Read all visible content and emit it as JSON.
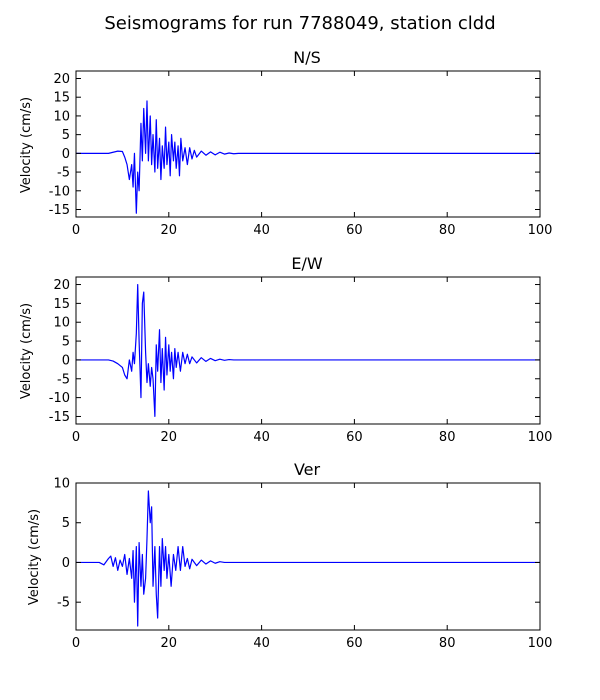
{
  "figure": {
    "title": "Seismograms for run 7788049, station cldd"
  },
  "colors": {
    "trace": "#0000ff",
    "axes": "#000000",
    "background": "#ffffff"
  },
  "chart_data": [
    {
      "type": "line",
      "title": "N/S",
      "xlabel": "",
      "ylabel": "Velocity (cm/s)",
      "xlim": [
        0,
        100
      ],
      "ylim": [
        -17,
        22
      ],
      "xticks": [
        0,
        20,
        40,
        60,
        80,
        100
      ],
      "yticks": [
        -15,
        -10,
        -5,
        0,
        5,
        10,
        15,
        20
      ],
      "grid": false,
      "series": [
        {
          "x": [
            0,
            5,
            7,
            8,
            9,
            10,
            10.5,
            11,
            11.5,
            12,
            12.3,
            12.6,
            13,
            13.3,
            13.6,
            14,
            14.3,
            14.6,
            15,
            15.3,
            15.6,
            16,
            16.3,
            16.6,
            17,
            17.3,
            17.6,
            18,
            18.3,
            18.6,
            19,
            19.3,
            19.6,
            20,
            20.3,
            20.6,
            21,
            21.3,
            21.6,
            22,
            22.3,
            22.6,
            23,
            23.5,
            24,
            24.5,
            25,
            25.5,
            26,
            27,
            28,
            29,
            30,
            31,
            32,
            33,
            34,
            35,
            40,
            50,
            60,
            70,
            80,
            90,
            100
          ],
          "y": [
            0,
            0,
            0,
            0.3,
            0.6,
            0.5,
            -1,
            -3,
            -7,
            -3,
            -9,
            0,
            -16,
            -5,
            -10,
            8,
            -2,
            12,
            0,
            14,
            -2,
            10,
            -3,
            5,
            -5,
            9,
            -4,
            4,
            -7,
            2,
            -4,
            7,
            -3,
            3,
            -6,
            5,
            -2,
            3,
            -4,
            2,
            -6,
            4,
            -2,
            1.5,
            -3,
            1.5,
            -1.5,
            0.8,
            -1,
            0.6,
            -0.5,
            0.4,
            -0.4,
            0.3,
            -0.2,
            0.1,
            -0.1,
            0,
            0,
            0,
            0,
            0,
            0,
            0,
            0
          ]
        }
      ]
    },
    {
      "type": "line",
      "title": "E/W",
      "xlabel": "",
      "ylabel": "Velocity (cm/s)",
      "xlim": [
        0,
        100
      ],
      "ylim": [
        -17,
        22
      ],
      "xticks": [
        0,
        20,
        40,
        60,
        80,
        100
      ],
      "yticks": [
        -15,
        -10,
        -5,
        0,
        5,
        10,
        15,
        20
      ],
      "grid": false,
      "series": [
        {
          "x": [
            0,
            5,
            7,
            8,
            9,
            10,
            10.5,
            11,
            11.5,
            12,
            12.3,
            12.6,
            13,
            13.3,
            13.6,
            14,
            14.3,
            14.6,
            15,
            15.3,
            15.6,
            16,
            16.3,
            16.6,
            17,
            17.3,
            17.6,
            18,
            18.3,
            18.6,
            19,
            19.3,
            19.6,
            20,
            20.3,
            20.6,
            21,
            21.3,
            21.6,
            22,
            22.5,
            23,
            23.5,
            24,
            24.5,
            25,
            26,
            27,
            28,
            29,
            30,
            31,
            32,
            33,
            34,
            35,
            40,
            50,
            60,
            70,
            80,
            90,
            100
          ],
          "y": [
            0,
            0,
            0,
            -0.3,
            -1,
            -2,
            -4,
            -5,
            0,
            -3,
            2,
            -1,
            7,
            20,
            5,
            -10,
            15,
            18,
            2,
            -6,
            -1,
            -7,
            -2,
            -5,
            -15,
            4,
            -3,
            8,
            -6,
            3,
            -8,
            6,
            -4,
            4,
            -3,
            2,
            -5,
            3,
            -2,
            2,
            -3,
            2,
            -1,
            1.5,
            -1,
            0.8,
            -0.8,
            0.6,
            -0.4,
            0.4,
            -0.2,
            0.2,
            -0.1,
            0.1,
            0,
            0,
            0,
            0,
            0,
            0,
            0,
            0,
            0
          ]
        }
      ]
    },
    {
      "type": "line",
      "title": "Ver",
      "xlabel": "",
      "ylabel": "Velocity (cm/s)",
      "xlim": [
        0,
        100
      ],
      "ylim": [
        -8.5,
        10
      ],
      "xticks": [
        0,
        20,
        40,
        60,
        80,
        100
      ],
      "yticks": [
        -5,
        0,
        5,
        10
      ],
      "grid": false,
      "series": [
        {
          "x": [
            0,
            5,
            6,
            7,
            7.5,
            8,
            8.5,
            9,
            9.5,
            10,
            10.5,
            11,
            11.5,
            12,
            12.3,
            12.6,
            13,
            13.3,
            13.6,
            14,
            14.3,
            14.6,
            15,
            15.3,
            15.6,
            16,
            16.3,
            16.6,
            17,
            17.3,
            17.6,
            18,
            18.3,
            18.6,
            19,
            19.3,
            19.6,
            20,
            20.5,
            21,
            21.5,
            22,
            22.5,
            23,
            23.5,
            24,
            24.5,
            25,
            26,
            27,
            28,
            29,
            30,
            31,
            32,
            33,
            35,
            40,
            50,
            60,
            70,
            80,
            90,
            100
          ],
          "y": [
            0,
            0,
            -0.3,
            0.5,
            0.8,
            -0.5,
            0.6,
            -1,
            0.3,
            -0.5,
            1.0,
            -1.5,
            0.5,
            -2,
            1.5,
            -5,
            2,
            -8,
            2.5,
            -3,
            1,
            -4,
            -2,
            3,
            9,
            5,
            7,
            -3,
            2,
            -4,
            -7,
            2,
            -3,
            3,
            -1,
            2,
            -2,
            1,
            -3,
            1,
            -1,
            2,
            -1,
            2,
            -0.5,
            0.5,
            -0.8,
            0.4,
            -0.4,
            0.3,
            -0.2,
            0.2,
            -0.1,
            0.1,
            0,
            0,
            0,
            0,
            0,
            0,
            0,
            0,
            0,
            0
          ]
        }
      ]
    }
  ]
}
